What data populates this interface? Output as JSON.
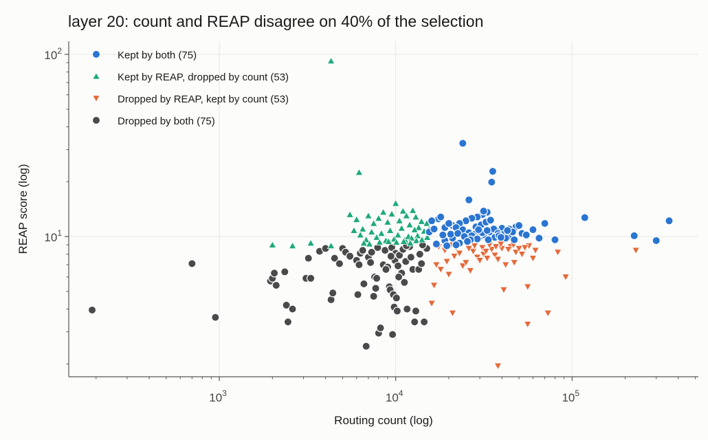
{
  "chart_data": {
    "type": "scatter",
    "title": "layer 20: count and REAP disagree on 40% of the selection",
    "xlabel": "Routing count (log)",
    "ylabel": "REAP score (log)",
    "xscale": "log",
    "yscale": "log",
    "xlim": [
      140,
      520000
    ],
    "ylim": [
      1.7,
      118
    ],
    "x_ticks": [
      {
        "value": 1000,
        "base": "10",
        "exp": "3"
      },
      {
        "value": 10000,
        "base": "10",
        "exp": "4"
      },
      {
        "value": 100000,
        "base": "10",
        "exp": "5"
      }
    ],
    "y_ticks": [
      {
        "value": 10,
        "base": "10",
        "exp": "1"
      },
      {
        "value": 100,
        "base": "10",
        "exp": "2"
      }
    ],
    "grid": true,
    "legend_position": "top-left",
    "series": [
      {
        "name": "Kept by both (75)",
        "marker": "circle",
        "color": "#2b75d1",
        "points": [
          [
            24000,
            32.5
          ],
          [
            35500,
            22.8
          ],
          [
            35000,
            19.9
          ],
          [
            26000,
            15.9
          ],
          [
            118000,
            12.7
          ],
          [
            355000,
            12.2
          ],
          [
            70000,
            11.8
          ],
          [
            48000,
            11.3
          ],
          [
            44000,
            11.0
          ],
          [
            40000,
            11.1
          ],
          [
            37000,
            10.8
          ],
          [
            33000,
            13.6
          ],
          [
            31000,
            13.2
          ],
          [
            29000,
            12.8
          ],
          [
            27000,
            12.6
          ],
          [
            25000,
            12.2
          ],
          [
            23000,
            11.8
          ],
          [
            21000,
            11.5
          ],
          [
            19000,
            11.2
          ],
          [
            17500,
            12.5
          ],
          [
            16000,
            12.2
          ],
          [
            18000,
            12.8
          ],
          [
            20000,
            11.8
          ],
          [
            22000,
            11.2
          ],
          [
            24000,
            10.9
          ],
          [
            26000,
            10.5
          ],
          [
            28000,
            10.3
          ],
          [
            30000,
            10.0
          ],
          [
            32000,
            10.2
          ],
          [
            34000,
            10.6
          ],
          [
            36000,
            11.0
          ],
          [
            38000,
            10.4
          ],
          [
            41000,
            10.3
          ],
          [
            45000,
            10.0
          ],
          [
            52000,
            10.4
          ],
          [
            55000,
            10.2
          ],
          [
            65000,
            9.8
          ],
          [
            80000,
            9.6
          ],
          [
            225000,
            10.1
          ],
          [
            300000,
            9.5
          ],
          [
            17000,
            9.1
          ],
          [
            19000,
            9.5
          ],
          [
            21000,
            9.8
          ],
          [
            23000,
            9.2
          ],
          [
            25000,
            9.9
          ],
          [
            27000,
            10.1
          ],
          [
            29000,
            9.7
          ],
          [
            31000,
            10.5
          ],
          [
            33000,
            10.8
          ],
          [
            15500,
            10.6
          ],
          [
            16500,
            11.0
          ],
          [
            18500,
            10.2
          ],
          [
            20500,
            10.3
          ],
          [
            22500,
            10.4
          ],
          [
            24500,
            10.0
          ],
          [
            26500,
            9.6
          ],
          [
            28500,
            11.3
          ],
          [
            30500,
            11.6
          ],
          [
            32500,
            12.0
          ],
          [
            34500,
            12.3
          ],
          [
            36500,
            9.9
          ],
          [
            38500,
            10.1
          ],
          [
            42000,
            9.8
          ],
          [
            46000,
            10.6
          ],
          [
            50000,
            11.5
          ],
          [
            19500,
            8.9
          ],
          [
            22000,
            9.0
          ],
          [
            25500,
            9.4
          ],
          [
            29500,
            10.9
          ],
          [
            31500,
            13.8
          ],
          [
            33500,
            9.6
          ],
          [
            39500,
            9.9
          ],
          [
            43000,
            10.8
          ],
          [
            47000,
            9.6
          ],
          [
            60000,
            10.9
          ]
        ]
      },
      {
        "name": "Kept by REAP, dropped by count (53)",
        "marker": "triangle-up",
        "color": "#1fa97c",
        "points": [
          [
            4300,
            92
          ],
          [
            6200,
            22.5
          ],
          [
            2000,
            9.0
          ],
          [
            2600,
            8.9
          ],
          [
            3300,
            9.2
          ],
          [
            4300,
            8.9
          ],
          [
            5500,
            13.2
          ],
          [
            6000,
            12.4
          ],
          [
            6500,
            11.0
          ],
          [
            7000,
            13.0
          ],
          [
            7500,
            11.8
          ],
          [
            8000,
            12.6
          ],
          [
            8500,
            13.6
          ],
          [
            9000,
            12.0
          ],
          [
            9500,
            13.3
          ],
          [
            10000,
            15.2
          ],
          [
            10500,
            12.2
          ],
          [
            11000,
            13.8
          ],
          [
            11500,
            13.0
          ],
          [
            12000,
            11.6
          ],
          [
            12500,
            13.9
          ],
          [
            13000,
            12.8
          ],
          [
            13500,
            11.2
          ],
          [
            14000,
            12.1
          ],
          [
            15000,
            11.8
          ],
          [
            5800,
            10.8
          ],
          [
            6300,
            10.2
          ],
          [
            6800,
            9.6
          ],
          [
            7300,
            10.6
          ],
          [
            7800,
            9.9
          ],
          [
            8300,
            10.4
          ],
          [
            8800,
            9.5
          ],
          [
            9300,
            10.8
          ],
          [
            9800,
            9.7
          ],
          [
            10300,
            10.2
          ],
          [
            10800,
            11.1
          ],
          [
            11300,
            9.6
          ],
          [
            11800,
            10.0
          ],
          [
            12300,
            9.8
          ],
          [
            12800,
            10.9
          ],
          [
            13300,
            10.1
          ],
          [
            14500,
            10.7
          ],
          [
            15500,
            11.0
          ],
          [
            6600,
            9.2
          ],
          [
            7100,
            9.1
          ],
          [
            9100,
            9.4
          ],
          [
            10100,
            9.3
          ],
          [
            11100,
            9.4
          ],
          [
            12100,
            9.2
          ],
          [
            13100,
            9.5
          ],
          [
            14100,
            9.6
          ],
          [
            15100,
            9.9
          ],
          [
            8100,
            9.3
          ]
        ]
      },
      {
        "name": "Dropped by REAP, kept by count (53)",
        "marker": "triangle-down",
        "color": "#e5693a",
        "points": [
          [
            38000,
            1.95
          ],
          [
            56000,
            3.3
          ],
          [
            73000,
            3.8
          ],
          [
            56000,
            5.3
          ],
          [
            92000,
            6.0
          ],
          [
            83000,
            8.2
          ],
          [
            230000,
            8.4
          ],
          [
            41000,
            5.1
          ],
          [
            21000,
            3.8
          ],
          [
            16000,
            4.3
          ],
          [
            16500,
            5.4
          ],
          [
            17000,
            7.0
          ],
          [
            18000,
            6.6
          ],
          [
            19500,
            7.3
          ],
          [
            20000,
            6.2
          ],
          [
            21500,
            7.8
          ],
          [
            23000,
            8.1
          ],
          [
            24000,
            6.9
          ],
          [
            25000,
            7.2
          ],
          [
            26500,
            6.5
          ],
          [
            27500,
            8.3
          ],
          [
            29000,
            7.7
          ],
          [
            30000,
            7.4
          ],
          [
            31500,
            8.0
          ],
          [
            33000,
            7.6
          ],
          [
            35000,
            8.5
          ],
          [
            36500,
            7.9
          ],
          [
            38000,
            7.5
          ],
          [
            40000,
            8.6
          ],
          [
            42000,
            7.0
          ],
          [
            45000,
            8.8
          ],
          [
            48000,
            8.2
          ],
          [
            52000,
            8.0
          ],
          [
            57000,
            8.9
          ],
          [
            62000,
            8.4
          ],
          [
            19000,
            8.4
          ],
          [
            22000,
            8.7
          ],
          [
            26000,
            8.6
          ],
          [
            28000,
            8.9
          ],
          [
            31000,
            8.7
          ],
          [
            34000,
            9.0
          ],
          [
            37000,
            8.8
          ],
          [
            39500,
            9.1
          ],
          [
            43500,
            8.5
          ],
          [
            46500,
            9.0
          ],
          [
            50000,
            8.6
          ],
          [
            54000,
            8.7
          ],
          [
            17500,
            8.8
          ],
          [
            20500,
            9.0
          ],
          [
            23500,
            9.1
          ],
          [
            32500,
            8.3
          ],
          [
            47000,
            7.2
          ],
          [
            60000,
            7.6
          ]
        ]
      },
      {
        "name": "Dropped by both (75)",
        "marker": "circle",
        "color": "#4a4a4a",
        "points": [
          [
            190,
            3.95
          ],
          [
            700,
            7.1
          ],
          [
            950,
            3.6
          ],
          [
            1950,
            5.7
          ],
          [
            2000,
            5.9
          ],
          [
            2050,
            6.3
          ],
          [
            2100,
            5.4
          ],
          [
            2350,
            6.4
          ],
          [
            2400,
            4.2
          ],
          [
            2450,
            3.4
          ],
          [
            2600,
            4.0
          ],
          [
            3100,
            5.9
          ],
          [
            3200,
            7.6
          ],
          [
            3300,
            5.9
          ],
          [
            3700,
            8.3
          ],
          [
            4000,
            8.6
          ],
          [
            4300,
            4.5
          ],
          [
            4400,
            4.9
          ],
          [
            4500,
            7.6
          ],
          [
            4800,
            7.1
          ],
          [
            5000,
            8.6
          ],
          [
            5200,
            8.2
          ],
          [
            5500,
            7.8
          ],
          [
            6000,
            7.4
          ],
          [
            6100,
            4.8
          ],
          [
            6200,
            7.0
          ],
          [
            6300,
            8.1
          ],
          [
            6600,
            5.5
          ],
          [
            6800,
            2.5
          ],
          [
            7000,
            7.7
          ],
          [
            7200,
            7.2
          ],
          [
            7300,
            8.2
          ],
          [
            7500,
            4.7
          ],
          [
            7600,
            6.0
          ],
          [
            7700,
            5.2
          ],
          [
            7900,
            8.7
          ],
          [
            8000,
            2.95
          ],
          [
            8200,
            3.15
          ],
          [
            8500,
            7.0
          ],
          [
            8700,
            8.4
          ],
          [
            9000,
            6.8
          ],
          [
            9200,
            5.3
          ],
          [
            9300,
            5.1
          ],
          [
            9500,
            8.7
          ],
          [
            9600,
            2.9
          ],
          [
            9700,
            4.8
          ],
          [
            9800,
            4.1
          ],
          [
            9900,
            7.4
          ],
          [
            10000,
            8.1
          ],
          [
            10200,
            3.9
          ],
          [
            10300,
            6.9
          ],
          [
            10500,
            7.9
          ],
          [
            10800,
            6.3
          ],
          [
            11000,
            8.5
          ],
          [
            11200,
            5.6
          ],
          [
            11400,
            7.3
          ],
          [
            11600,
            4.0
          ],
          [
            12000,
            8.8
          ],
          [
            12500,
            6.6
          ],
          [
            12800,
            3.4
          ],
          [
            13000,
            3.9
          ],
          [
            13500,
            6.6
          ],
          [
            14000,
            7.1
          ],
          [
            14500,
            3.4
          ],
          [
            15000,
            8.6
          ],
          [
            10400,
            6.0
          ],
          [
            11500,
            8.9
          ],
          [
            9400,
            7.8
          ],
          [
            8800,
            6.6
          ],
          [
            6500,
            8.4
          ],
          [
            12200,
            7.7
          ],
          [
            7800,
            5.9
          ],
          [
            13700,
            8.0
          ],
          [
            10100,
            4.6
          ],
          [
            14200,
            9.0
          ]
        ]
      }
    ]
  }
}
